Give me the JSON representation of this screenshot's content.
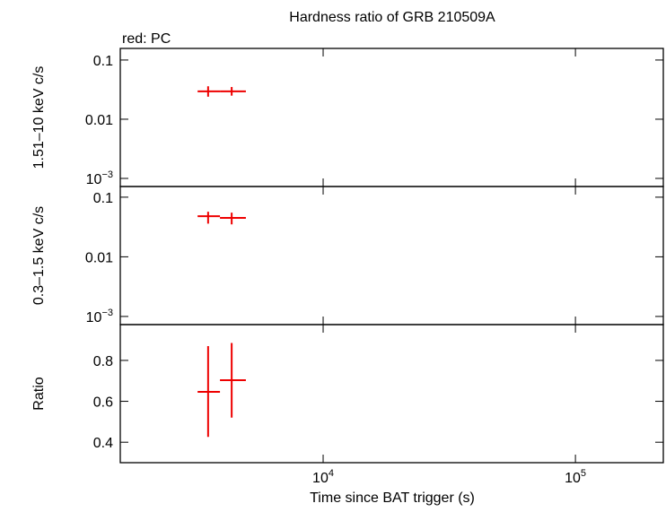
{
  "chart_data": [
    {
      "type": "errorbar",
      "title": "Hardness ratio of GRB 210509A",
      "subtitle": "red: PC",
      "ylabel": "1.51–10 keV c/s",
      "log_y": true,
      "ylim": [
        0.00073,
        0.157
      ],
      "yticks": [
        0.1,
        0.01,
        {
          "value": 0.001,
          "label": "10−3"
        }
      ],
      "series": [
        {
          "color": "#ee0000",
          "x": [
            3500,
            4340
          ],
          "x_low": [
            3180,
            3900
          ],
          "x_high": [
            3900,
            4940
          ],
          "values": [
            0.0295,
            0.0295
          ],
          "low": [
            0.024,
            0.025
          ],
          "high": [
            0.036,
            0.035
          ]
        }
      ]
    },
    {
      "type": "errorbar",
      "ylabel": "0.3–1.5 keV c/s",
      "log_y": true,
      "ylim": [
        0.00073,
        0.151
      ],
      "yticks": [
        0.1,
        0.01,
        {
          "value": 0.001,
          "label": "10−3"
        }
      ],
      "series": [
        {
          "color": "#ee0000",
          "x": [
            3500,
            4340
          ],
          "x_low": [
            3180,
            3900
          ],
          "x_high": [
            3900,
            4940
          ],
          "values": [
            0.048,
            0.045
          ],
          "low": [
            0.036,
            0.035
          ],
          "high": [
            0.057,
            0.055
          ]
        }
      ]
    },
    {
      "type": "errorbar",
      "ylabel": "Ratio",
      "xlabel": "Time since BAT trigger (s)",
      "log_y": false,
      "ylim": [
        0.3,
        0.975
      ],
      "yticks": [
        0.4,
        0.6,
        0.8
      ],
      "log_x": true,
      "xlim": [
        1570,
        223000
      ],
      "xticks": [
        {
          "value": 10000,
          "label": "104"
        },
        {
          "value": 100000,
          "label": "105"
        }
      ],
      "series": [
        {
          "color": "#ee0000",
          "x": [
            3500,
            4340
          ],
          "x_low": [
            3180,
            3900
          ],
          "x_high": [
            3900,
            4940
          ],
          "values": [
            0.646,
            0.703
          ],
          "low": [
            0.426,
            0.52
          ],
          "high": [
            0.87,
            0.885
          ]
        }
      ]
    }
  ]
}
